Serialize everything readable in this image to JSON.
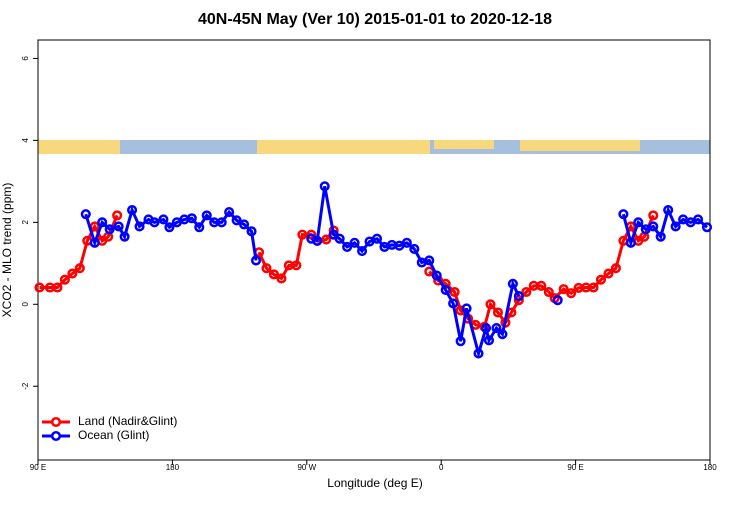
{
  "chart_data": {
    "type": "line",
    "title": "40N-45N May (Ver 10)   2015-01-01 to 2020-12-18",
    "x_label": "Longitude (deg E)",
    "y_label": "XCO2 - MLO trend (ppm)",
    "xlim": [
      90,
      540
    ],
    "ylim": [
      -3.8,
      6.45
    ],
    "xticks": [
      {
        "value": 90,
        "label": "90 E"
      },
      180,
      {
        "value": 270,
        "label": "90 W"
      },
      {
        "value": 360,
        "label": "0"
      },
      {
        "value": 450,
        "label": "90 E"
      },
      {
        "value": 540,
        "label": "180"
      }
    ],
    "yticks": [
      -2,
      0,
      2,
      4,
      6
    ],
    "legend": "bottom-left",
    "series": [
      {
        "name": "Land (Nadir&Glint)",
        "color": "#ff0000",
        "x": [
          91,
          98,
          103,
          108,
          113,
          118,
          123,
          128,
          133,
          137,
          143,
          150,
          238,
          243,
          248,
          253,
          258,
          263,
          267,
          273,
          277,
          283,
          288,
          320,
          352,
          358,
          363,
          369,
          373,
          378,
          383,
          389,
          393,
          398,
          403,
          407,
          412,
          417,
          422,
          427,
          432,
          436,
          442,
          447,
          452,
          457,
          462,
          467,
          472,
          477,
          482,
          487,
          492,
          496,
          502
        ],
        "values": [
          0.41,
          0.41,
          0.41,
          0.6,
          0.75,
          0.88,
          1.55,
          1.9,
          1.55,
          1.65,
          2.17,
          null,
          1.27,
          0.88,
          0.73,
          0.63,
          0.95,
          0.95,
          1.7,
          1.7,
          1.55,
          1.58,
          1.8,
          null,
          0.8,
          0.58,
          0.5,
          0.3,
          -0.15,
          -0.35,
          -0.5,
          -0.55,
          0,
          -0.2,
          -0.45,
          -0.2,
          0.1,
          0.3,
          0.45,
          0.45,
          0.3,
          0.15,
          0.37,
          0.27,
          0.4,
          0.41,
          0.41,
          0.6,
          0.75,
          0.88,
          1.55,
          1.9,
          1.55,
          1.65,
          2.17
        ]
      },
      {
        "name": "Ocean (Glint)",
        "color": "#0000ff",
        "x": [
          122,
          128,
          133,
          138,
          144,
          148,
          153,
          158,
          164,
          168,
          174,
          178,
          183,
          188,
          193,
          198,
          203,
          208,
          213,
          218,
          223,
          228,
          233,
          236,
          260,
          273,
          277,
          282,
          288,
          292,
          297,
          302,
          307,
          312,
          317,
          322,
          327,
          332,
          337,
          342,
          347,
          352,
          357,
          363,
          368,
          373,
          377,
          385,
          390,
          392,
          397,
          401,
          408,
          412,
          420,
          438,
          470,
          482,
          487,
          492,
          497,
          502,
          507,
          512,
          517,
          522,
          527,
          532,
          538
        ],
        "values": [
          2.2,
          1.5,
          2.0,
          1.83,
          1.9,
          1.65,
          2.3,
          1.9,
          2.07,
          2.0,
          2.07,
          1.88,
          2.0,
          2.07,
          2.1,
          1.88,
          2.17,
          2.0,
          2.0,
          2.25,
          2.05,
          1.95,
          1.78,
          1.07,
          null,
          1.6,
          1.55,
          2.88,
          1.7,
          1.6,
          1.4,
          1.5,
          1.3,
          1.53,
          1.6,
          1.4,
          1.45,
          1.43,
          1.5,
          1.35,
          1.02,
          1.07,
          0.7,
          0.35,
          0.02,
          -0.9,
          -0.1,
          -1.2,
          -0.58,
          -0.88,
          -0.58,
          -0.73,
          0.5,
          0.2,
          null,
          0.1,
          null,
          2.2,
          1.5,
          2.0,
          1.83,
          1.9,
          1.65,
          2.3,
          1.9,
          2.07,
          2.0,
          2.07,
          1.88
        ]
      }
    ]
  }
}
